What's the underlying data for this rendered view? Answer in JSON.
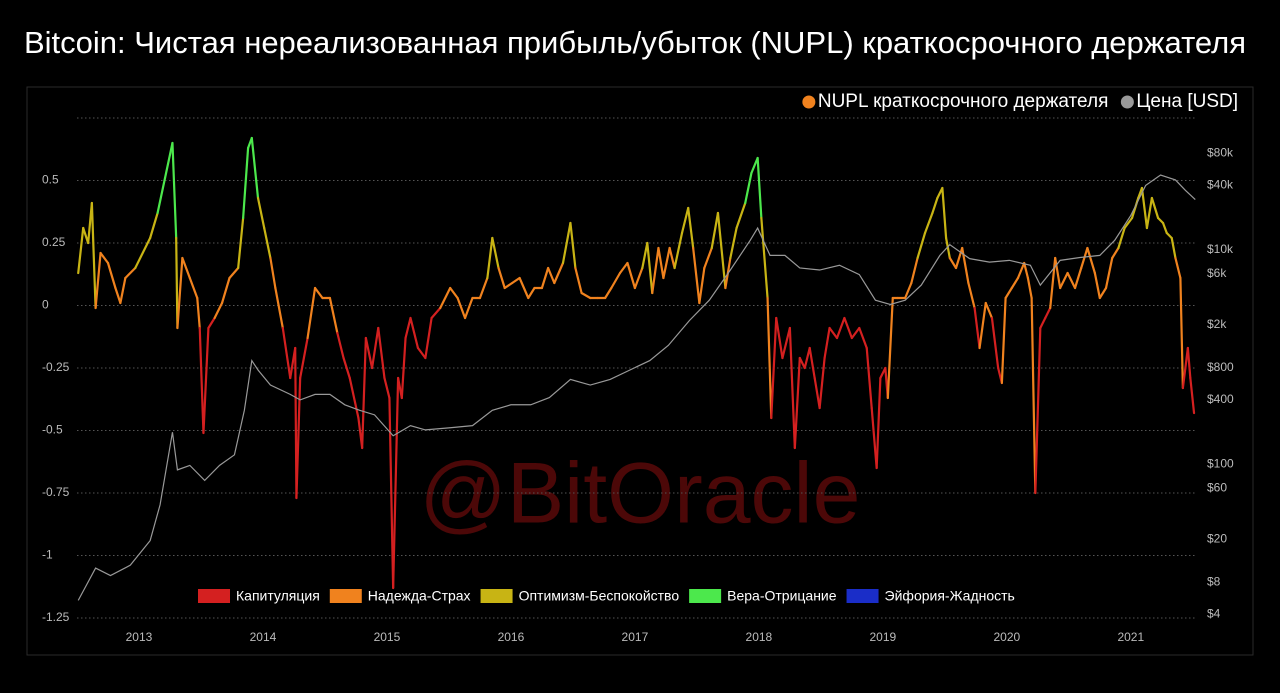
{
  "chart_data": {
    "type": "line",
    "title": "Bitcoin: Чистая нереализованная прибыль/убыток (NUPL) краткосрочного держателя",
    "watermark": "@BitOracle",
    "xlim": [
      2012.5,
      2021.55
    ],
    "xticks": [
      2013,
      2014,
      2015,
      2016,
      2017,
      2018,
      2019,
      2020,
      2021
    ],
    "ylim": [
      -1.25,
      0.75
    ],
    "yticks": [
      0.5,
      0.25,
      0,
      -0.25,
      -0.5,
      -0.75,
      -1,
      -1.25
    ],
    "y2lim": [
      3.7,
      170000
    ],
    "y2scale": "log",
    "y2ticks": [
      {
        "value": 80000,
        "label": "$80k"
      },
      {
        "value": 40000,
        "label": "$40k"
      },
      {
        "value": 10000,
        "label": "$10k"
      },
      {
        "value": 6000,
        "label": "$6k"
      },
      {
        "value": 2000,
        "label": "$2k"
      },
      {
        "value": 800,
        "label": "$800"
      },
      {
        "value": 400,
        "label": "$400"
      },
      {
        "value": 100,
        "label": "$100"
      },
      {
        "value": 60,
        "label": "$60"
      },
      {
        "value": 20,
        "label": "$20"
      },
      {
        "value": 8,
        "label": "$8"
      },
      {
        "value": 4,
        "label": "$4"
      }
    ],
    "grid": true,
    "legend_position": "top-right",
    "zones": [
      {
        "name": "Капитуляция",
        "color": "#d42020"
      },
      {
        "name": "Надежда-Страх",
        "color": "#f0821e",
        "min": 0
      },
      {
        "name": "Оптимизм-Беспокойство",
        "color": "#c8b414",
        "min": 0.25
      },
      {
        "name": "Вера-Отрицание",
        "color": "#4ce84c",
        "min": 0.5
      },
      {
        "name": "Эйфория-Жадность",
        "color": "#1a2dc8",
        "min": 0.75
      }
    ],
    "series": [
      {
        "name": "NUPL краткосрочного держателя",
        "color": "#f0821e",
        "x": [
          2012.51,
          2012.55,
          2012.59,
          2012.62,
          2012.65,
          2012.69,
          2012.75,
          2012.81,
          2012.85,
          2012.89,
          2012.97,
          2013.09,
          2013.15,
          2013.21,
          2013.27,
          2013.3,
          2013.31,
          2013.35,
          2013.41,
          2013.47,
          2013.49,
          2013.52,
          2013.56,
          2013.61,
          2013.67,
          2013.73,
          2013.8,
          2013.84,
          2013.88,
          2013.91,
          2013.96,
          2014.01,
          2014.06,
          2014.1,
          2014.16,
          2014.22,
          2014.26,
          2014.27,
          2014.3,
          2014.36,
          2014.42,
          2014.48,
          2014.54,
          2014.6,
          2014.65,
          2014.7,
          2014.77,
          2014.8,
          2014.83,
          2014.88,
          2014.93,
          2014.98,
          2015.02,
          2015.05,
          2015.09,
          2015.12,
          2015.15,
          2015.19,
          2015.25,
          2015.31,
          2015.36,
          2015.43,
          2015.51,
          2015.57,
          2015.63,
          2015.69,
          2015.75,
          2015.81,
          2015.85,
          2015.9,
          2015.95,
          2016.01,
          2016.07,
          2016.14,
          2016.19,
          2016.25,
          2016.3,
          2016.35,
          2016.42,
          2016.48,
          2016.52,
          2016.57,
          2016.64,
          2016.7,
          2016.76,
          2016.81,
          2016.88,
          2016.94,
          2017.0,
          2017.06,
          2017.1,
          2017.14,
          2017.19,
          2017.23,
          2017.28,
          2017.32,
          2017.38,
          2017.43,
          2017.47,
          2017.52,
          2017.56,
          2017.62,
          2017.67,
          2017.73,
          2017.77,
          2017.82,
          2017.89,
          2017.94,
          2017.99,
          2018.02,
          2018.07,
          2018.1,
          2018.14,
          2018.19,
          2018.25,
          2018.29,
          2018.33,
          2018.37,
          2018.41,
          2018.45,
          2018.49,
          2018.53,
          2018.57,
          2018.63,
          2018.69,
          2018.75,
          2018.81,
          2018.87,
          2018.91,
          2018.95,
          2018.98,
          2019.02,
          2019.04,
          2019.08,
          2019.12,
          2019.18,
          2019.23,
          2019.28,
          2019.34,
          2019.4,
          2019.44,
          2019.48,
          2019.51,
          2019.54,
          2019.59,
          2019.64,
          2019.69,
          2019.74,
          2019.78,
          2019.83,
          2019.88,
          2019.93,
          2019.96,
          2019.99,
          2020.04,
          2020.09,
          2020.14,
          2020.17,
          2020.2,
          2020.23,
          2020.27,
          2020.31,
          2020.35,
          2020.39,
          2020.43,
          2020.49,
          2020.55,
          2020.6,
          2020.65,
          2020.71,
          2020.75,
          2020.8,
          2020.85,
          2020.9,
          2020.95,
          2021.01,
          2021.06,
          2021.09,
          2021.13,
          2021.17,
          2021.22,
          2021.26,
          2021.29,
          2021.33,
          2021.36,
          2021.4,
          2021.42,
          2021.46,
          2021.48,
          2021.51
        ],
        "values": [
          0.13,
          0.31,
          0.25,
          0.41,
          -0.01,
          0.21,
          0.17,
          0.07,
          0.01,
          0.11,
          0.15,
          0.27,
          0.37,
          0.51,
          0.65,
          0.27,
          -0.09,
          0.19,
          0.11,
          0.03,
          -0.09,
          -0.51,
          -0.09,
          -0.05,
          0.01,
          0.11,
          0.15,
          0.35,
          0.63,
          0.67,
          0.43,
          0.31,
          0.19,
          0.07,
          -0.09,
          -0.29,
          -0.17,
          -0.77,
          -0.29,
          -0.13,
          0.07,
          0.03,
          0.03,
          -0.11,
          -0.21,
          -0.29,
          -0.45,
          -0.57,
          -0.13,
          -0.25,
          -0.09,
          -0.29,
          -0.37,
          -1.13,
          -0.29,
          -0.37,
          -0.13,
          -0.05,
          -0.17,
          -0.21,
          -0.05,
          -0.01,
          0.07,
          0.03,
          -0.05,
          0.03,
          0.03,
          0.11,
          0.27,
          0.15,
          0.07,
          0.09,
          0.11,
          0.03,
          0.07,
          0.07,
          0.15,
          0.09,
          0.17,
          0.33,
          0.15,
          0.05,
          0.03,
          0.03,
          0.03,
          0.07,
          0.13,
          0.17,
          0.07,
          0.15,
          0.25,
          0.05,
          0.23,
          0.11,
          0.23,
          0.15,
          0.29,
          0.39,
          0.23,
          0.01,
          0.15,
          0.23,
          0.37,
          0.07,
          0.19,
          0.31,
          0.41,
          0.53,
          0.59,
          0.35,
          0.03,
          -0.45,
          -0.05,
          -0.21,
          -0.09,
          -0.57,
          -0.21,
          -0.25,
          -0.17,
          -0.29,
          -0.41,
          -0.21,
          -0.09,
          -0.13,
          -0.05,
          -0.13,
          -0.09,
          -0.17,
          -0.41,
          -0.65,
          -0.29,
          -0.25,
          -0.37,
          0.03,
          0.03,
          0.03,
          0.09,
          0.19,
          0.29,
          0.37,
          0.43,
          0.47,
          0.27,
          0.19,
          0.15,
          0.23,
          0.09,
          -0.01,
          -0.17,
          0.01,
          -0.05,
          -0.25,
          -0.31,
          0.03,
          0.07,
          0.11,
          0.17,
          0.11,
          0.03,
          -0.75,
          -0.09,
          -0.05,
          -0.01,
          0.19,
          0.07,
          0.13,
          0.07,
          0.15,
          0.23,
          0.13,
          0.03,
          0.07,
          0.19,
          0.23,
          0.31,
          0.35,
          0.43,
          0.47,
          0.31,
          0.43,
          0.35,
          0.33,
          0.29,
          0.27,
          0.19,
          0.11,
          -0.33,
          -0.17,
          -0.29,
          -0.43
        ]
      },
      {
        "name": "Цена [USD]",
        "color": "#999999",
        "axis": "y2",
        "x": [
          2012.51,
          2012.65,
          2012.77,
          2012.93,
          2013.09,
          2013.17,
          2013.27,
          2013.31,
          2013.41,
          2013.53,
          2013.65,
          2013.77,
          2013.85,
          2013.91,
          2013.96,
          2014.06,
          2014.22,
          2014.3,
          2014.42,
          2014.54,
          2014.66,
          2014.78,
          2014.9,
          2015.05,
          2015.19,
          2015.31,
          2015.51,
          2015.69,
          2015.85,
          2016.0,
          2016.16,
          2016.31,
          2016.48,
          2016.64,
          2016.8,
          2016.96,
          2017.12,
          2017.27,
          2017.44,
          2017.6,
          2017.77,
          2017.93,
          2017.99,
          2018.09,
          2018.21,
          2018.33,
          2018.49,
          2018.65,
          2018.81,
          2018.94,
          2019.06,
          2019.18,
          2019.31,
          2019.46,
          2019.54,
          2019.7,
          2019.86,
          2020.02,
          2020.19,
          2020.27,
          2020.43,
          2020.59,
          2020.75,
          2020.87,
          2021.0,
          2021.12,
          2021.24,
          2021.36,
          2021.44,
          2021.52
        ],
        "values": [
          5.4,
          10.8,
          9.2,
          11.5,
          19.5,
          42,
          200,
          89,
          98,
          71,
          98,
          123,
          320,
          930,
          760,
          550,
          450,
          400,
          450,
          450,
          360,
          320,
          290,
          185,
          230,
          210,
          220,
          230,
          320,
          360,
          360,
          420,
          620,
          550,
          620,
          760,
          930,
          1290,
          2200,
          3400,
          6500,
          12300,
          16000,
          8900,
          8900,
          6800,
          6500,
          7200,
          5900,
          3400,
          3100,
          3400,
          4700,
          8900,
          11200,
          8300,
          7700,
          8000,
          7200,
          4700,
          8000,
          8500,
          8900,
          12300,
          21000,
          40000,
          50000,
          45000,
          36000,
          29500
        ]
      }
    ]
  }
}
